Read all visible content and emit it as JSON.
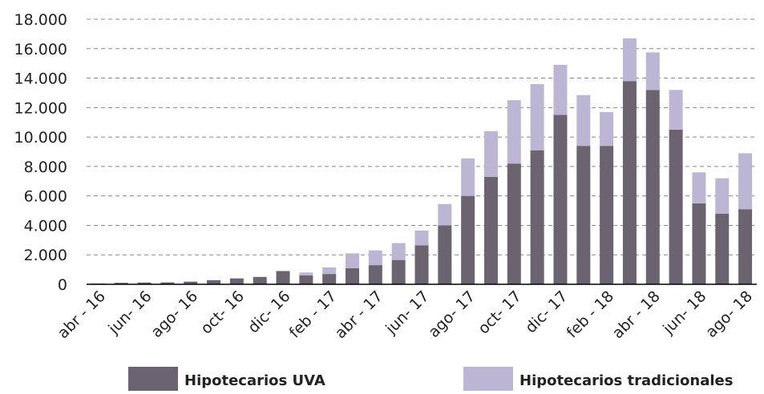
{
  "chart_data": {
    "type": "stacked_bar",
    "categories": [
      "abr - 16",
      null,
      "jun- 16",
      null,
      "ago- 16",
      null,
      "oct- 16",
      null,
      "dic- 16",
      null,
      "feb - 17",
      null,
      "abr - 17",
      null,
      "jun- 17",
      null,
      "ago- 17",
      null,
      "oct- 17",
      null,
      "dic- 17",
      null,
      "feb - 18",
      null,
      "abr - 18",
      null,
      "jun- 18",
      null,
      "ago- 18"
    ],
    "series": [
      {
        "name": "Hipotecarios UVA",
        "color": "#6b6470",
        "values": [
          50,
          100,
          120,
          130,
          180,
          280,
          400,
          500,
          900,
          600,
          700,
          1100,
          1300,
          1650,
          2650,
          4000,
          6000,
          7300,
          8200,
          9100,
          11500,
          9400,
          9400,
          13800,
          13200,
          10500,
          5500,
          4800,
          5100
        ]
      },
      {
        "name": "Hipotecarios tradicionales",
        "color": "#bcb6d4",
        "values": [
          0,
          0,
          0,
          0,
          0,
          0,
          0,
          0,
          0,
          200,
          450,
          1000,
          1000,
          1150,
          1000,
          1450,
          2550,
          3100,
          4300,
          4500,
          3400,
          3450,
          2300,
          2900,
          2550,
          2700,
          2100,
          2400,
          3800
        ]
      }
    ],
    "ylim": [
      0,
      18000
    ],
    "yticks": [
      0,
      {
        "value": 2000,
        "label": "2.000"
      },
      {
        "value": 4000,
        "label": "4.000"
      },
      {
        "value": 6000,
        "label": "6.000"
      },
      {
        "value": 8000,
        "label": "8.000"
      },
      {
        "value": 10000,
        "label": "10.000"
      },
      {
        "value": 12000,
        "label": "12.000"
      },
      {
        "value": 14000,
        "label": "14.000"
      },
      {
        "value": 16000,
        "label": "16.000"
      },
      {
        "value": 18000,
        "label": "18.000"
      }
    ],
    "grid": true,
    "legend": "bottom"
  }
}
